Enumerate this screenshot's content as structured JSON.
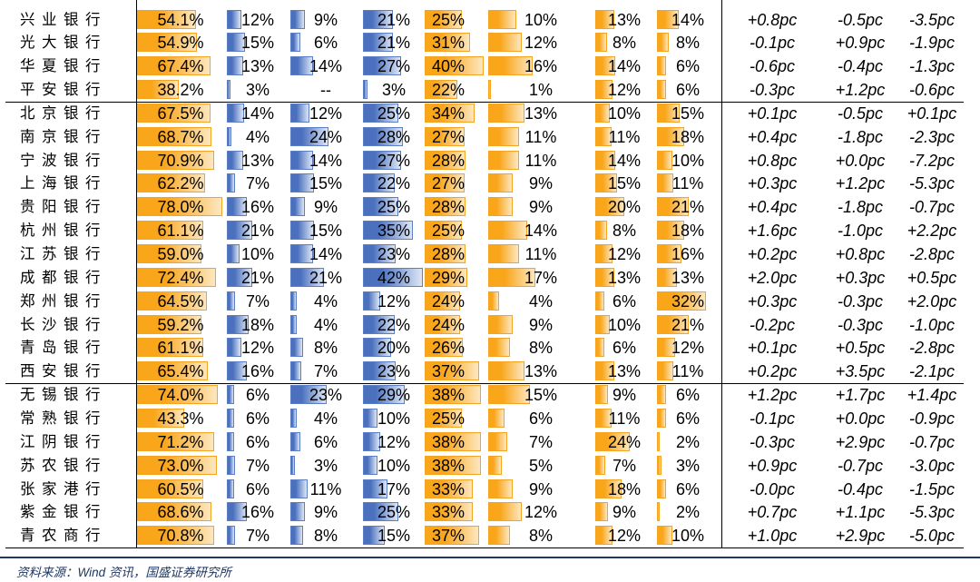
{
  "chart_data": {
    "type": "table",
    "bar_color_by_column": [
      "orange",
      "blue",
      "blue",
      "blue",
      "orange",
      "orange",
      "orange",
      "orange",
      null,
      null,
      null
    ],
    "groups": [
      {
        "rows": [
          {
            "bank": "兴业银行",
            "values": [
              "54.1%",
              "12%",
              "9%",
              "21%",
              "25%",
              "10%",
              "13%",
              "14%",
              "+0.8pc",
              "-0.5pc",
              "-3.5pc"
            ]
          },
          {
            "bank": "光大银行",
            "values": [
              "54.9%",
              "15%",
              "6%",
              "21%",
              "31%",
              "12%",
              "8%",
              "8%",
              "-0.1pc",
              "+0.9pc",
              "-1.9pc"
            ]
          },
          {
            "bank": "华夏银行",
            "values": [
              "67.4%",
              "13%",
              "14%",
              "27%",
              "40%",
              "16%",
              "14%",
              "6%",
              "-0.6pc",
              "-0.4pc",
              "-1.3pc"
            ]
          },
          {
            "bank": "平安银行",
            "values": [
              "38.2%",
              "3%",
              "--",
              "3%",
              "22%",
              "1%",
              "12%",
              "6%",
              "-0.3pc",
              "+1.2pc",
              "-0.6pc"
            ]
          }
        ]
      },
      {
        "rows": [
          {
            "bank": "北京银行",
            "values": [
              "67.5%",
              "14%",
              "12%",
              "25%",
              "34%",
              "13%",
              "10%",
              "15%",
              "+0.1pc",
              "-0.5pc",
              "+0.1pc"
            ]
          },
          {
            "bank": "南京银行",
            "values": [
              "68.7%",
              "4%",
              "24%",
              "28%",
              "27%",
              "11%",
              "11%",
              "18%",
              "+0.4pc",
              "-1.8pc",
              "-2.3pc"
            ]
          },
          {
            "bank": "宁波银行",
            "values": [
              "70.9%",
              "13%",
              "14%",
              "27%",
              "28%",
              "11%",
              "14%",
              "10%",
              "+0.8pc",
              "+0.0pc",
              "-7.2pc"
            ]
          },
          {
            "bank": "上海银行",
            "values": [
              "62.2%",
              "7%",
              "15%",
              "22%",
              "27%",
              "9%",
              "15%",
              "11%",
              "+0.3pc",
              "+1.2pc",
              "-5.3pc"
            ]
          },
          {
            "bank": "贵阳银行",
            "values": [
              "78.0%",
              "16%",
              "9%",
              "25%",
              "28%",
              "9%",
              "20%",
              "21%",
              "+0.4pc",
              "-1.8pc",
              "-0.7pc"
            ]
          },
          {
            "bank": "杭州银行",
            "values": [
              "61.1%",
              "21%",
              "15%",
              "35%",
              "25%",
              "14%",
              "8%",
              "18%",
              "+1.6pc",
              "-1.0pc",
              "+2.2pc"
            ]
          },
          {
            "bank": "江苏银行",
            "values": [
              "59.0%",
              "10%",
              "14%",
              "23%",
              "28%",
              "11%",
              "12%",
              "16%",
              "+0.2pc",
              "+0.8pc",
              "-2.8pc"
            ]
          },
          {
            "bank": "成都银行",
            "values": [
              "72.4%",
              "21%",
              "21%",
              "42%",
              "29%",
              "17%",
              "13%",
              "13%",
              "+2.0pc",
              "+0.3pc",
              "+0.5pc"
            ]
          },
          {
            "bank": "郑州银行",
            "values": [
              "64.5%",
              "7%",
              "4%",
              "12%",
              "24%",
              "4%",
              "6%",
              "32%",
              "+0.3pc",
              "-0.3pc",
              "+2.0pc"
            ]
          },
          {
            "bank": "长沙银行",
            "values": [
              "59.2%",
              "18%",
              "4%",
              "22%",
              "24%",
              "9%",
              "10%",
              "21%",
              "-0.2pc",
              "-0.3pc",
              "-1.0pc"
            ]
          },
          {
            "bank": "青岛银行",
            "values": [
              "61.1%",
              "12%",
              "8%",
              "20%",
              "26%",
              "8%",
              "6%",
              "12%",
              "+0.1pc",
              "+0.5pc",
              "-2.8pc"
            ]
          },
          {
            "bank": "西安银行",
            "values": [
              "65.4%",
              "16%",
              "7%",
              "23%",
              "37%",
              "13%",
              "13%",
              "11%",
              "+0.2pc",
              "+3.5pc",
              "-2.1pc"
            ]
          }
        ]
      },
      {
        "rows": [
          {
            "bank": "无锡银行",
            "values": [
              "74.0%",
              "6%",
              "23%",
              "29%",
              "38%",
              "15%",
              "9%",
              "6%",
              "+1.2pc",
              "+1.7pc",
              "+1.4pc"
            ]
          },
          {
            "bank": "常熟银行",
            "values": [
              "43.3%",
              "6%",
              "4%",
              "10%",
              "25%",
              "6%",
              "11%",
              "6%",
              "-0.1pc",
              "+0.0pc",
              "-0.9pc"
            ]
          },
          {
            "bank": "江阴银行",
            "values": [
              "71.2%",
              "6%",
              "6%",
              "12%",
              "38%",
              "7%",
              "24%",
              "2%",
              "-0.3pc",
              "+2.9pc",
              "-0.7pc"
            ]
          },
          {
            "bank": "苏农银行",
            "values": [
              "73.0%",
              "7%",
              "3%",
              "10%",
              "38%",
              "5%",
              "7%",
              "3%",
              "+0.9pc",
              "-0.7pc",
              "-3.0pc"
            ]
          },
          {
            "bank": "张家港行",
            "values": [
              "60.5%",
              "6%",
              "11%",
              "17%",
              "33%",
              "9%",
              "18%",
              "6%",
              "-0.0pc",
              "-0.4pc",
              "-1.5pc"
            ]
          },
          {
            "bank": "紫金银行",
            "values": [
              "68.6%",
              "16%",
              "9%",
              "25%",
              "33%",
              "12%",
              "9%",
              "2%",
              "+0.7pc",
              "+1.1pc",
              "-5.3pc"
            ]
          },
          {
            "bank": "青农商行",
            "values": [
              "70.8%",
              "7%",
              "8%",
              "15%",
              "37%",
              "8%",
              "12%",
              "10%",
              "+1.0pc",
              "+2.9pc",
              "-5.0pc"
            ]
          }
        ]
      }
    ]
  },
  "source": "资料来源：Wind 资讯，国盛证券研究所",
  "colors": {
    "orange_bar": "#F9A61B",
    "orange_bar_light": "#FDE7BF",
    "orange_border": "#F5A323",
    "blue_bar": "#4A70BE",
    "blue_bar_light": "#DDE6F6",
    "blue_border": "#5B7EC5",
    "source_text": "#1F3864"
  }
}
